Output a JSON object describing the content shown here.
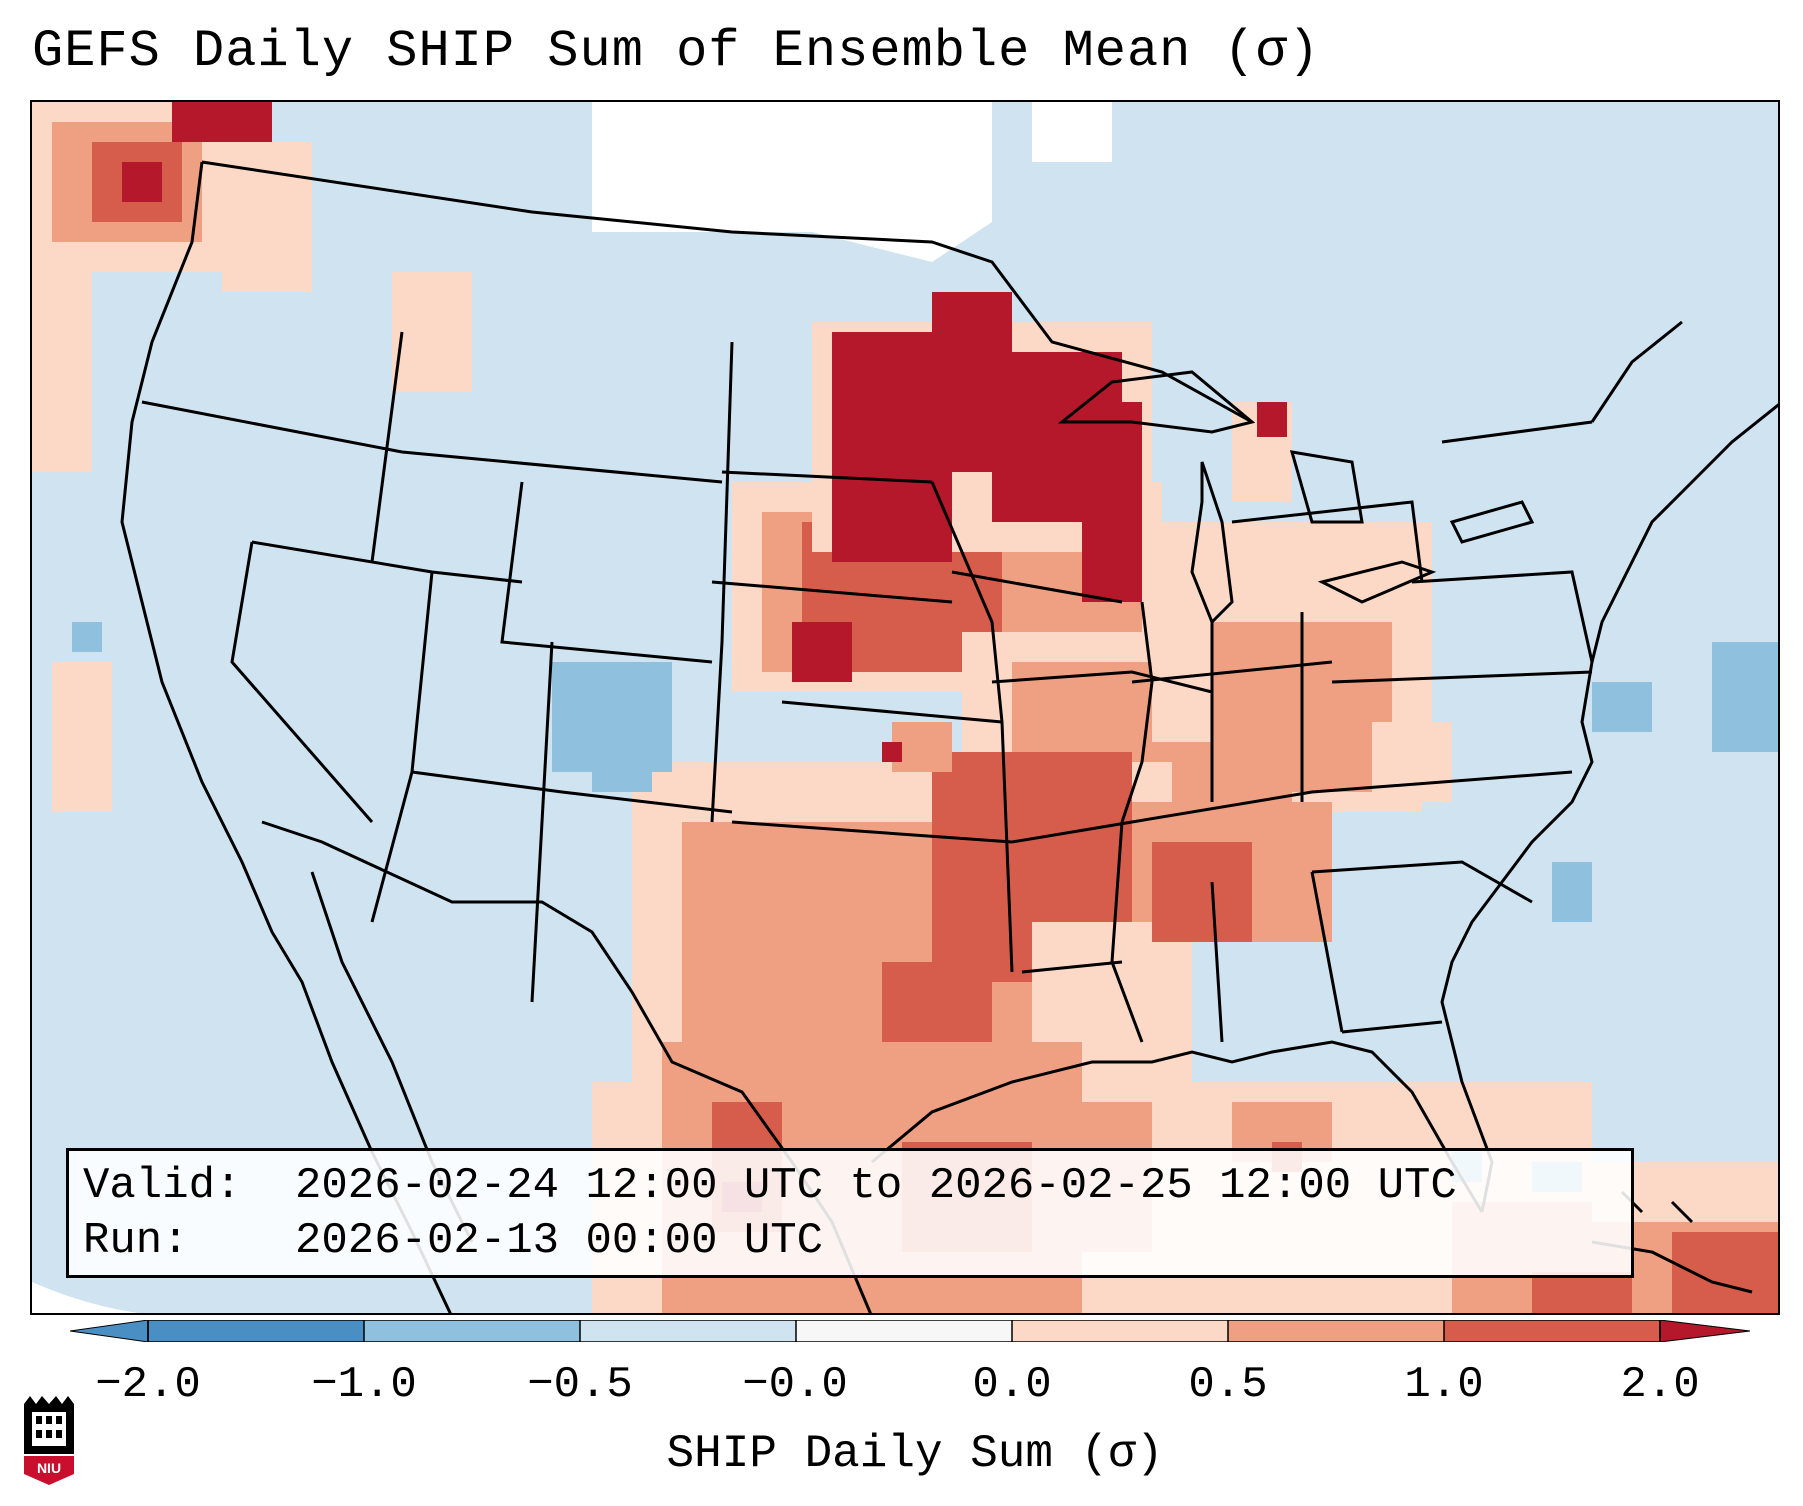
{
  "title": "GEFS Daily SHIP Sum of Ensemble Mean (σ)",
  "info": {
    "valid_label": "Valid:",
    "valid_value": "2026-02-24 12:00 UTC to 2026-02-25 12:00 UTC",
    "run_label": "Run:",
    "run_value": "2026-02-13 00:00 UTC"
  },
  "colorbar": {
    "label": "SHIP Daily Sum (σ)",
    "ticks": [
      "−2.0",
      "−1.0",
      "−0.5",
      "−0.0",
      "0.0",
      "0.5",
      "1.0",
      "2.0"
    ],
    "colors": [
      "#4a8fc4",
      "#8fc1de",
      "#cfe3f0",
      "#f7f7f7",
      "#fcd9c7",
      "#ef9f82",
      "#d65d4c",
      "#b5172b"
    ],
    "extend": "both"
  },
  "map": {
    "region": "Contiguous United States",
    "ocean_color": "#cfe3f0",
    "max_highlight": "Upper Midwest",
    "features": [
      "state borders",
      "country borders",
      "coastlines",
      "Great Lakes",
      "Gulf of Mexico",
      "Caribbean"
    ]
  },
  "logo": {
    "text": "NIU",
    "name": "niu-logo-icon"
  }
}
